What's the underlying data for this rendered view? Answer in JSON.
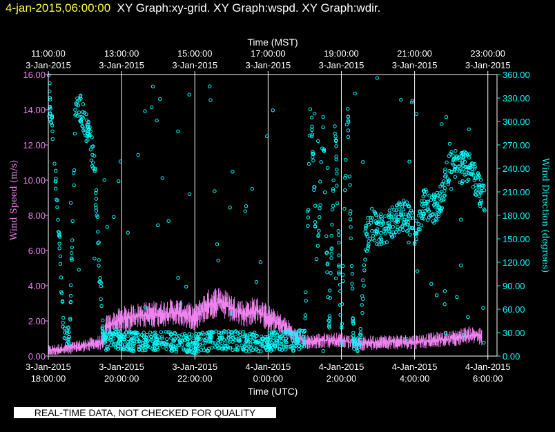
{
  "header": {
    "timestamp": "4-jan-2015,06:00:00",
    "title": "XY Graph:xy-grid.  XY Graph:wspd.  XY Graph:wdir."
  },
  "banner": "REAL-TIME DATA, NOT CHECKED FOR QUALITY",
  "colors": {
    "background": "#000000",
    "wind_speed": "#ee82ee",
    "wind_direction": "#00ffff",
    "grid": "#ffffff",
    "timestamp": "#ffff40"
  },
  "chart_data": {
    "type": "scatter",
    "grid": true,
    "xlim": [
      "2015-01-03 18:00",
      "2015-01-04 06:15"
    ],
    "x_top": {
      "label": "Time (MST)",
      "ticks": [
        {
          "time": "2015-01-03 18:00",
          "line1": "11:00:00",
          "line2": "3-Jan-2015"
        },
        {
          "time": "2015-01-03 20:00",
          "line1": "13:00:00",
          "line2": "3-Jan-2015"
        },
        {
          "time": "2015-01-03 22:00",
          "line1": "15:00:00",
          "line2": "3-Jan-2015"
        },
        {
          "time": "2015-01-04 00:00",
          "line1": "17:00:00",
          "line2": "3-Jan-2015"
        },
        {
          "time": "2015-01-04 02:00",
          "line1": "19:00:00",
          "line2": "3-Jan-2015"
        },
        {
          "time": "2015-01-04 04:00",
          "line1": "21:00:00",
          "line2": "3-Jan-2015"
        },
        {
          "time": "2015-01-04 06:00",
          "line1": "23:00:00",
          "line2": "3-Jan-2015"
        }
      ]
    },
    "x_bottom": {
      "label": "Time (UTC)",
      "ticks": [
        {
          "time": "2015-01-03 18:00",
          "line1": "3-Jan-2015",
          "line2": "18:00:00"
        },
        {
          "time": "2015-01-03 20:00",
          "line1": "3-Jan-2015",
          "line2": "20:00:00"
        },
        {
          "time": "2015-01-03 22:00",
          "line1": "3-Jan-2015",
          "line2": "22:00:00"
        },
        {
          "time": "2015-01-04 00:00",
          "line1": "4-Jan-2015",
          "line2": "0:00:00"
        },
        {
          "time": "2015-01-04 02:00",
          "line1": "4-Jan-2015",
          "line2": "2:00:00"
        },
        {
          "time": "2015-01-04 04:00",
          "line1": "4-Jan-2015",
          "line2": "4:00:00"
        },
        {
          "time": "2015-01-04 06:00",
          "line1": "4-Jan-2015",
          "line2": "6:00:00"
        }
      ]
    },
    "y_left": {
      "label": "Wind Speed (m/s)",
      "ylim": [
        0,
        16
      ],
      "ticks": [
        "0.00",
        "2.00",
        "4.00",
        "6.00",
        "8.00",
        "10.00",
        "12.00",
        "14.00",
        "16.00"
      ]
    },
    "y_right": {
      "label": "Wind Direction (degrees)",
      "ylim": [
        0,
        360
      ],
      "ticks": [
        "0.00",
        "30.00",
        "60.00",
        "90.00",
        "120.00",
        "150.00",
        "180.00",
        "210.00",
        "240.00",
        "270.00",
        "300.00",
        "330.00",
        "360.00"
      ]
    },
    "series": [
      {
        "name": "Wind Speed (m/s)",
        "axis": "left",
        "time": [
          "2015-01-03 18:00",
          "2015-01-03 18:45",
          "2015-01-03 19:30",
          "2015-01-03 19:35",
          "2015-01-03 20:00",
          "2015-01-03 20:30",
          "2015-01-03 21:00",
          "2015-01-03 21:30",
          "2015-01-03 22:00",
          "2015-01-03 22:20",
          "2015-01-03 22:40",
          "2015-01-03 23:00",
          "2015-01-03 23:20",
          "2015-01-03 23:40",
          "2015-01-04 00:00",
          "2015-01-04 00:30",
          "2015-01-04 00:45",
          "2015-01-04 01:00",
          "2015-01-04 01:30",
          "2015-01-04 02:00",
          "2015-01-04 02:30",
          "2015-01-04 03:00",
          "2015-01-04 03:30",
          "2015-01-04 04:00",
          "2015-01-04 04:30",
          "2015-01-04 05:00",
          "2015-01-04 05:30",
          "2015-01-04 05:50"
        ],
        "values": [
          0.3,
          0.5,
          0.8,
          1.7,
          2.1,
          2.3,
          2.4,
          2.5,
          2.2,
          2.9,
          3.1,
          2.7,
          2.4,
          2.6,
          2.2,
          1.6,
          1.1,
          0.8,
          0.9,
          0.9,
          0.7,
          0.8,
          0.8,
          0.8,
          0.9,
          1.0,
          1.2,
          1.1
        ]
      },
      {
        "name": "Wind Direction (degrees)",
        "axis": "right",
        "time": [
          "2015-01-03 18:00",
          "2015-01-03 18:05",
          "2015-01-03 18:15",
          "2015-01-03 18:25",
          "2015-01-03 18:35",
          "2015-01-03 18:45",
          "2015-01-03 19:00",
          "2015-01-03 19:15",
          "2015-01-03 19:30",
          "2015-01-03 19:40",
          "2015-01-03 20:00",
          "2015-01-03 20:30",
          "2015-01-03 21:00",
          "2015-01-03 21:30",
          "2015-01-03 22:00",
          "2015-01-03 22:30",
          "2015-01-03 23:00",
          "2015-01-03 23:30",
          "2015-01-04 00:00",
          "2015-01-04 00:30",
          "2015-01-04 00:45",
          "2015-01-04 01:00",
          "2015-01-04 01:10",
          "2015-01-04 01:20",
          "2015-01-04 01:30",
          "2015-01-04 01:40",
          "2015-01-04 01:50",
          "2015-01-04 02:00",
          "2015-01-04 02:10",
          "2015-01-04 02:20",
          "2015-01-04 02:30",
          "2015-01-04 02:40",
          "2015-01-04 02:50",
          "2015-01-04 03:00",
          "2015-01-04 03:15",
          "2015-01-04 03:30",
          "2015-01-04 03:45",
          "2015-01-04 04:00",
          "2015-01-04 04:15",
          "2015-01-04 04:30",
          "2015-01-04 04:45",
          "2015-01-04 05:00",
          "2015-01-04 05:15",
          "2015-01-04 05:30",
          "2015-01-04 05:45",
          "2015-01-04 05:55"
        ],
        "values": [
          355,
          300,
          200,
          30,
          25,
          330,
          300,
          250,
          20,
          18,
          20,
          18,
          20,
          18,
          16,
          20,
          20,
          18,
          18,
          20,
          18,
          25,
          330,
          120,
          300,
          40,
          300,
          15,
          340,
          20,
          10,
          150,
          170,
          160,
          165,
          175,
          180,
          160,
          195,
          185,
          205,
          255,
          240,
          245,
          215,
          200
        ]
      }
    ]
  }
}
